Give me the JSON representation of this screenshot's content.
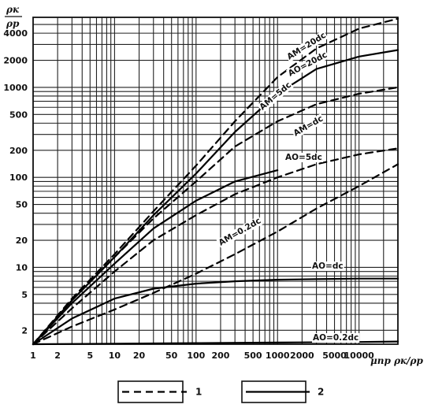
{
  "chart_data": {
    "type": "line",
    "title": "",
    "x_scale": "log",
    "y_scale": "log",
    "xlim": [
      1,
      30000
    ],
    "ylim": [
      1.4,
      6000
    ],
    "grid": true,
    "xlabel": "μпр ρк/ρр",
    "ylabel_top": "ρк",
    "ylabel_bottom": "ρр",
    "x_ticks": [
      1,
      2,
      5,
      10,
      20,
      50,
      100,
      200,
      500,
      1000,
      2000,
      5000,
      10000
    ],
    "x_tick_labels": [
      "1",
      "2",
      "5",
      "10",
      "20",
      "50",
      "100",
      "200",
      "500",
      "1000",
      "2000",
      "5000",
      "10000"
    ],
    "y_ticks": [
      2,
      5,
      10,
      20,
      50,
      100,
      200,
      500,
      1000,
      2000,
      4000
    ],
    "y_tick_labels": [
      "2",
      "5",
      "10",
      "20",
      "50",
      "100",
      "200",
      "500",
      "1000",
      "2000",
      "4000"
    ],
    "legend": [
      {
        "key": "1",
        "style": "dashed"
      },
      {
        "key": "2",
        "style": "solid"
      }
    ],
    "series": [
      {
        "name": "AM=20dc",
        "style": "dashed",
        "x": [
          1,
          3,
          10,
          30,
          100,
          300,
          1000,
          3000,
          10000,
          30000
        ],
        "y": [
          1.4,
          4.5,
          14,
          42,
          135,
          420,
          1300,
          2700,
          4500,
          5800
        ]
      },
      {
        "name": "AO=20dc",
        "style": "solid",
        "x": [
          1,
          3,
          10,
          30,
          100,
          300,
          1000,
          3000,
          10000,
          30000
        ],
        "y": [
          1.4,
          4.3,
          13,
          38,
          110,
          320,
          850,
          1600,
          2200,
          2600
        ]
      },
      {
        "name": "AM=5dc",
        "style": "dashed",
        "x": [
          1,
          3,
          10,
          30,
          100,
          300,
          1000,
          3000,
          10000,
          30000
        ],
        "y": [
          1.4,
          4.3,
          13,
          35,
          90,
          220,
          420,
          650,
          850,
          1000
        ]
      },
      {
        "name": "AO=5dc",
        "style": "solid",
        "x": [
          1,
          3,
          10,
          30,
          100,
          300,
          1000
        ],
        "y": [
          1.4,
          4.0,
          11,
          27,
          55,
          90,
          120
        ]
      },
      {
        "name": "AM=dc",
        "style": "dashed",
        "x": [
          1,
          3,
          10,
          30,
          100,
          300,
          1000,
          3000,
          10000,
          30000
        ],
        "y": [
          1.4,
          3.5,
          9,
          20,
          38,
          65,
          100,
          140,
          180,
          210
        ]
      },
      {
        "name": "AO=dc",
        "style": "solid",
        "x": [
          1,
          3,
          10,
          30,
          100,
          300,
          1000,
          3000,
          10000,
          30000
        ],
        "y": [
          1.4,
          2.7,
          4.5,
          5.8,
          6.6,
          7.0,
          7.3,
          7.4,
          7.5,
          7.5
        ]
      },
      {
        "name": "AM=0.2dc",
        "style": "dashed",
        "x": [
          1,
          3,
          10,
          30,
          100,
          300,
          1000,
          3000,
          10000,
          30000
        ],
        "y": [
          1.4,
          2.2,
          3.4,
          5.2,
          8.5,
          14,
          25,
          45,
          80,
          140
        ]
      },
      {
        "name": "AO=0.2dc",
        "style": "solid",
        "x": [
          1,
          10,
          100,
          1000,
          10000,
          30000
        ],
        "y": [
          1.4,
          1.42,
          1.44,
          1.46,
          1.48,
          1.5
        ]
      }
    ],
    "annotations": [
      {
        "text": "AM=20dc",
        "series": "AM=20dc",
        "rotate": -32
      },
      {
        "text": "AO=20dc",
        "series": "AO=20dc",
        "rotate": -28
      },
      {
        "text": "AM=5dc",
        "series": "AM=5dc",
        "rotate": -40
      },
      {
        "text": "AM=dc",
        "series": "AM=dc",
        "rotate": -30
      },
      {
        "text": "AO=5dc",
        "series": "AO=5dc",
        "rotate": 0
      },
      {
        "text": "AM=0.2dc",
        "series": "AM=0.2dc",
        "rotate": -30
      },
      {
        "text": "AO=dc",
        "series": "AO=dc",
        "rotate": 0
      },
      {
        "text": "AO=0.2dc",
        "series": "AO=0.2dc",
        "rotate": 0
      }
    ]
  }
}
